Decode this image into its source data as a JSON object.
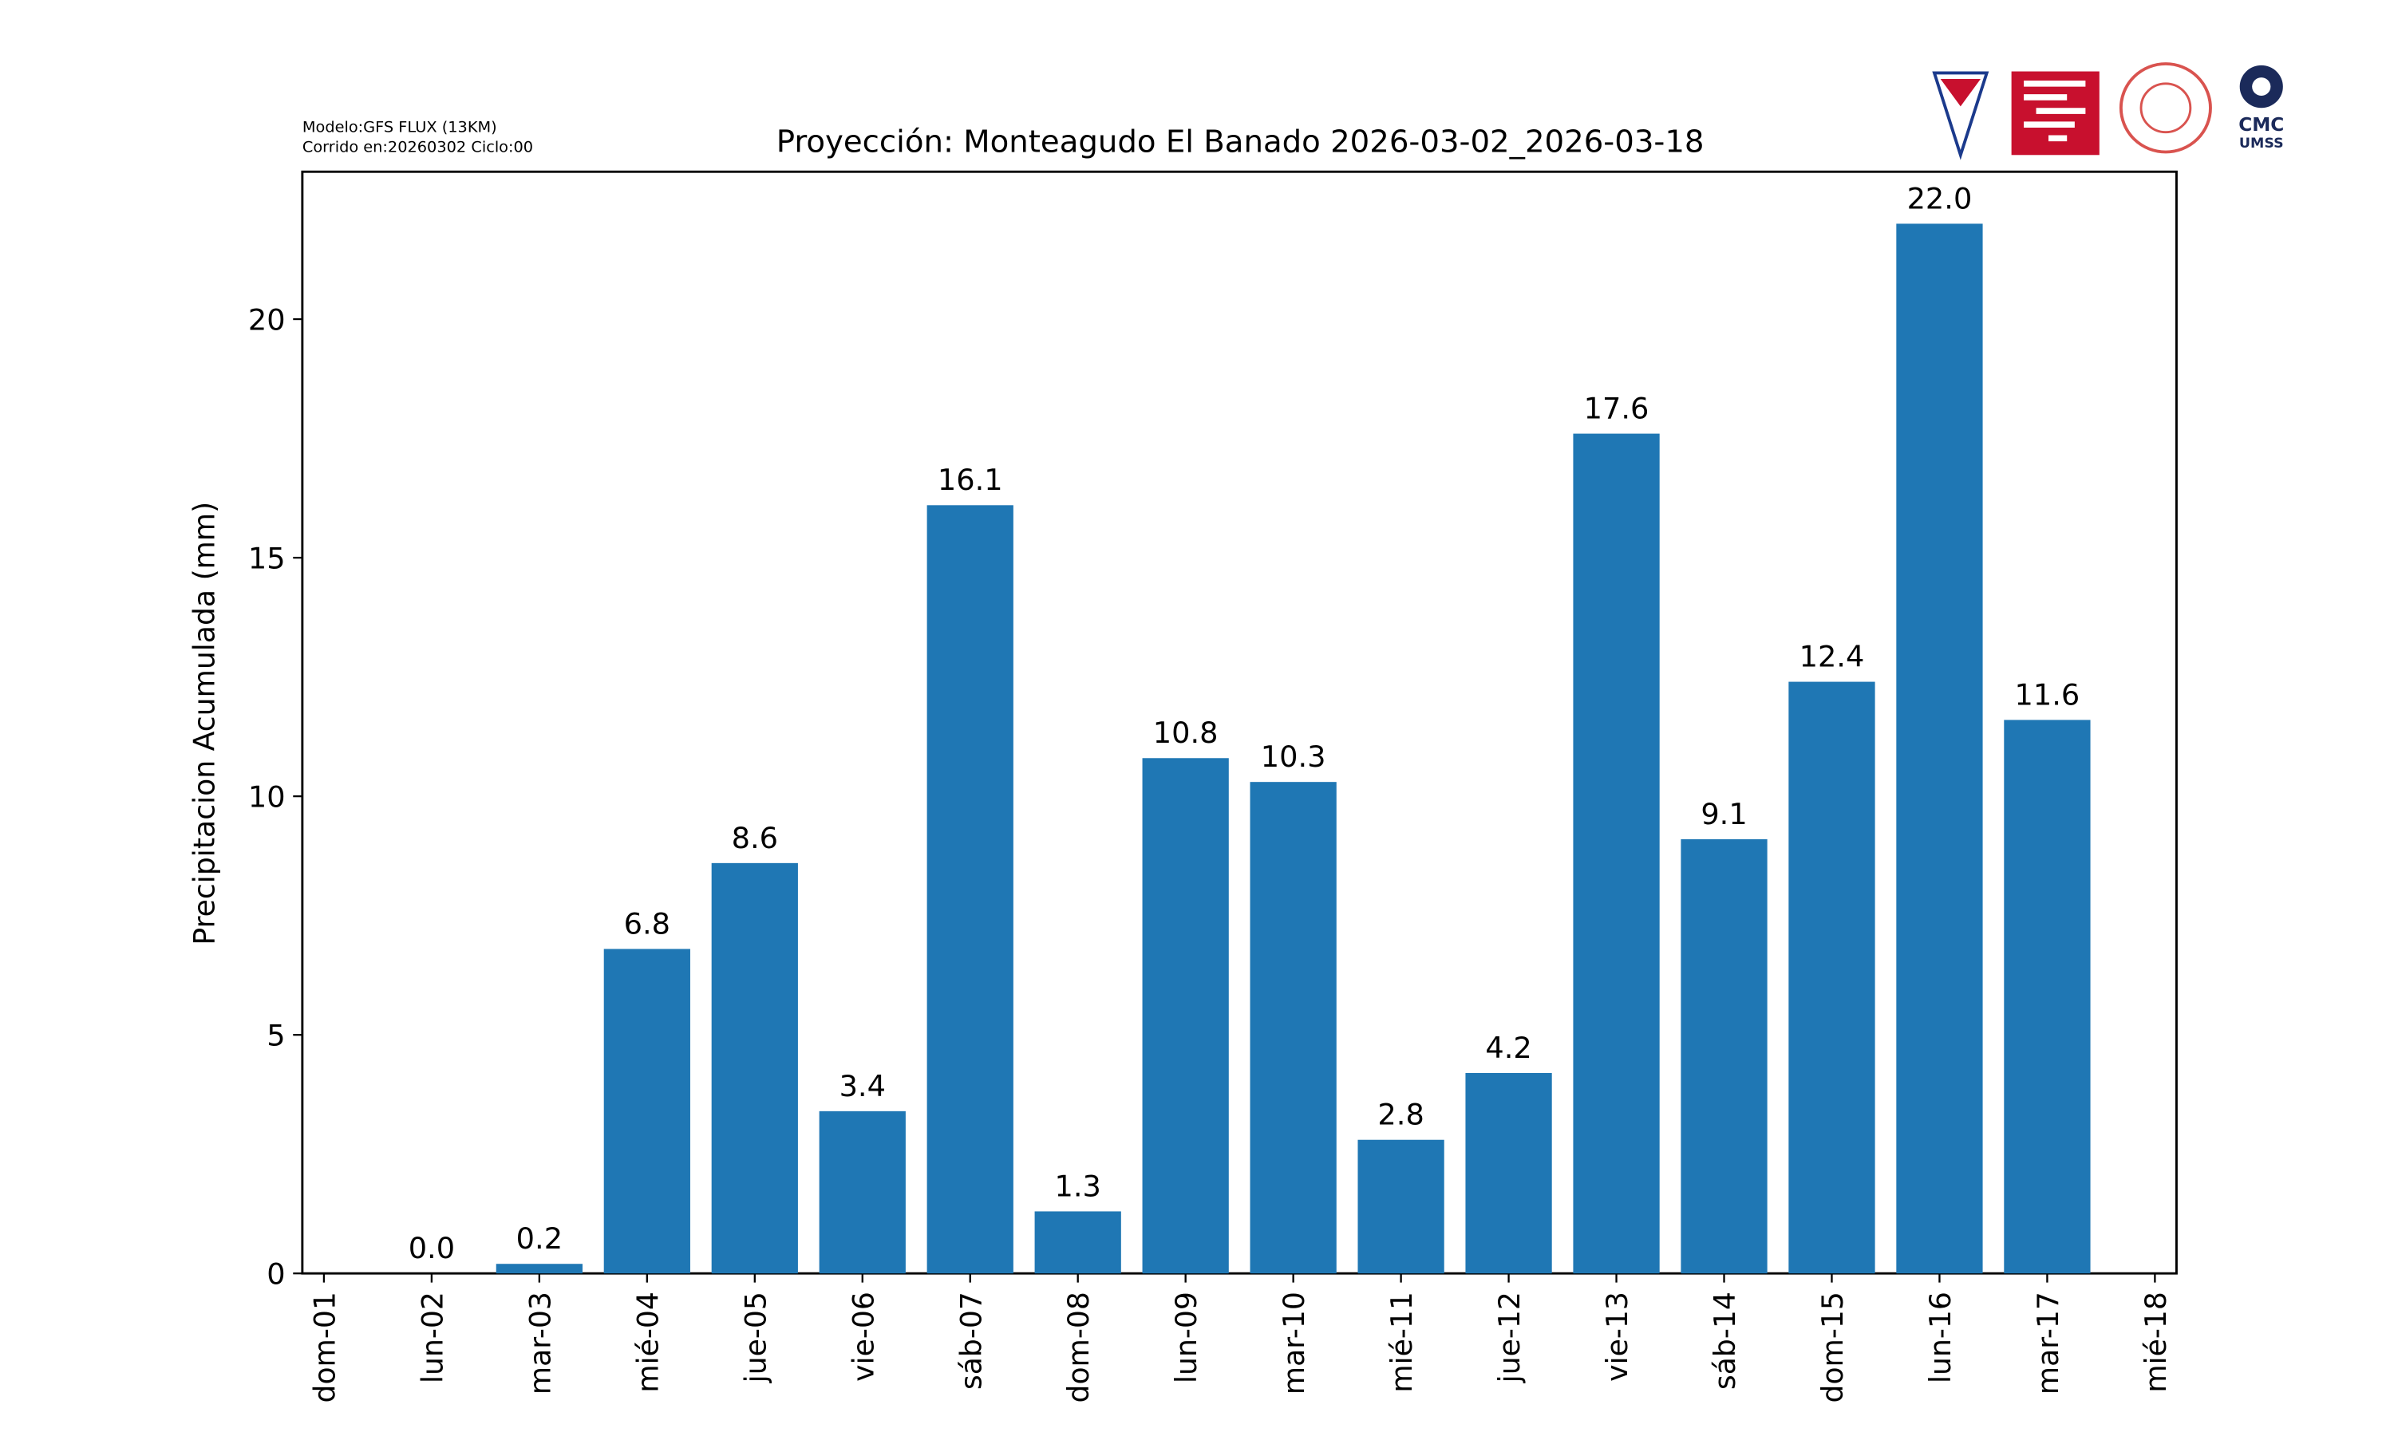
{
  "chart_data": {
    "type": "bar",
    "title": "Proyección: Monteagudo El Banado  2026-03-02_2026-03-18",
    "notes": [
      "Modelo:GFS FLUX (13KM)",
      "Corrido en:20260302 Ciclo:00"
    ],
    "logo_text": [
      "CMC",
      "UMSS"
    ],
    "y_label": "Precipitacion Acumulada (mm)",
    "categories": [
      "dom-01",
      "lun-02",
      "mar-03",
      "mié-04",
      "jue-05",
      "vie-06",
      "sáb-07",
      "dom-08",
      "lun-09",
      "mar-10",
      "mié-11",
      "jue-12",
      "vie-13",
      "sáb-14",
      "dom-15",
      "lun-16",
      "mar-17",
      "mié-18"
    ],
    "values": [
      null,
      0,
      0.2,
      6.8,
      8.6,
      3.4,
      16.1,
      1.3,
      10.8,
      10.3,
      2.8,
      4.2,
      17.6,
      9.1,
      12.4,
      22.0,
      11.6,
      null
    ],
    "value_labels": [
      null,
      "0.0",
      "0.2",
      "6.8",
      "8.6",
      "3.4",
      "16.1",
      "1.3",
      "10.8",
      "10.3",
      "2.8",
      "4.2",
      "17.6",
      "9.1",
      "12.4",
      "22.0",
      "11.6",
      null
    ],
    "color": "#1f77b4",
    "ylim": [
      0,
      23.09
    ],
    "yticks": [
      0,
      5,
      10,
      15,
      20
    ],
    "grid": false
  }
}
